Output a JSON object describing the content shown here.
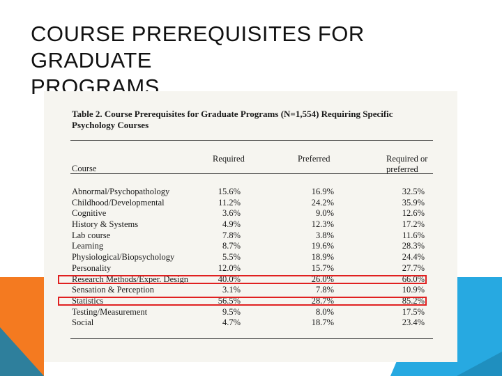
{
  "slide": {
    "title_line1": "COURSE PREREQUISITES FOR GRADUATE",
    "title_line2": "PROGRAMS"
  },
  "table": {
    "caption_line1": "Table 2.  Course Prerequisites for Graduate Programs (N=1,554) Requiring Specific",
    "caption_line2": "Psychology Courses",
    "headers": {
      "course": "Course",
      "required": "Required",
      "preferred": "Preferred",
      "required_or_preferred_line1": "Required or",
      "required_or_preferred_line2": "preferred"
    },
    "rows": [
      {
        "course": "Abnormal/Psychopathology",
        "required": "15.6%",
        "preferred": "16.9%",
        "required_or_preferred": "32.5%"
      },
      {
        "course": "Childhood/Developmental",
        "required": "11.2%",
        "preferred": "24.2%",
        "required_or_preferred": "35.9%"
      },
      {
        "course": "Cognitive",
        "required": "3.6%",
        "preferred": "9.0%",
        "required_or_preferred": "12.6%"
      },
      {
        "course": "History & Systems",
        "required": "4.9%",
        "preferred": "12.3%",
        "required_or_preferred": "17.2%"
      },
      {
        "course": "Lab course",
        "required": "7.8%",
        "preferred": "3.8%",
        "required_or_preferred": "11.6%"
      },
      {
        "course": "Learning",
        "required": "8.7%",
        "preferred": "19.6%",
        "required_or_preferred": "28.3%"
      },
      {
        "course": "Physiological/Biopsychology",
        "required": "5.5%",
        "preferred": "18.9%",
        "required_or_preferred": "24.4%"
      },
      {
        "course": "Personality",
        "required": "12.0%",
        "preferred": "15.7%",
        "required_or_preferred": "27.7%"
      },
      {
        "course": "Research Methods/Exper. Design",
        "required": "40.0%",
        "preferred": "26.0%",
        "required_or_preferred": "66.0%"
      },
      {
        "course": "Sensation & Perception",
        "required": "3.1%",
        "preferred": "7.8%",
        "required_or_preferred": "10.9%"
      },
      {
        "course": "Statistics",
        "required": "56.5%",
        "preferred": "28.7%",
        "required_or_preferred": "85.2%"
      },
      {
        "course": "Testing/Measurement",
        "required": "9.5%",
        "preferred": "8.0%",
        "required_or_preferred": "17.5%"
      },
      {
        "course": "Social",
        "required": "4.7%",
        "preferred": "18.7%",
        "required_or_preferred": "23.4%"
      }
    ],
    "highlighted_rows": [
      "Research Methods/Exper. Design",
      "Statistics"
    ]
  },
  "colors": {
    "highlight_border": "#e02020",
    "accent_orange": "#f47a20",
    "accent_blue": "#27a9e1",
    "accent_teal": "#2e7f9c"
  }
}
